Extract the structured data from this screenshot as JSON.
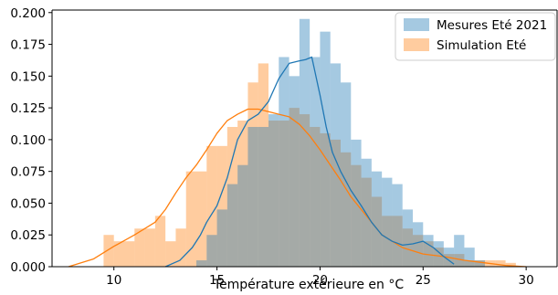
{
  "chart_data": {
    "type": "bar",
    "title": "",
    "xlabel": "Température extérieure en °C",
    "ylabel": "",
    "xlim": [
      7,
      31.5
    ],
    "ylim": [
      0,
      0.202
    ],
    "x_ticks": [
      10,
      15,
      20,
      25,
      30
    ],
    "y_ticks": [
      0.0,
      0.025,
      0.05,
      0.075,
      0.1,
      0.125,
      0.15,
      0.175,
      0.2
    ],
    "grid": false,
    "legend_position": "top-right",
    "series": [
      {
        "name": "Simulation Eté",
        "color": "#ff7f0e",
        "bin_start": 9.5,
        "bin_width": 0.5,
        "values": [
          0.025,
          0.02,
          0.02,
          0.03,
          0.03,
          0.04,
          0.02,
          0.03,
          0.075,
          0.075,
          0.095,
          0.095,
          0.11,
          0.115,
          0.145,
          0.16,
          0.115,
          0.115,
          0.125,
          0.12,
          0.11,
          0.105,
          0.1,
          0.09,
          0.08,
          0.07,
          0.055,
          0.04,
          0.04,
          0.03,
          0.025,
          0.02,
          0.015,
          0.01,
          0.01,
          0.005,
          0.005,
          0.005,
          0.005,
          0.003
        ]
      },
      {
        "name": "Mesures Eté 2021",
        "color": "#1f77b4",
        "bin_start": 14.0,
        "bin_width": 0.5,
        "values": [
          0.005,
          0.025,
          0.045,
          0.065,
          0.08,
          0.11,
          0.11,
          0.12,
          0.165,
          0.15,
          0.195,
          0.165,
          0.185,
          0.16,
          0.145,
          0.1,
          0.085,
          0.075,
          0.07,
          0.065,
          0.045,
          0.035,
          0.025,
          0.02,
          0.015,
          0.025,
          0.015,
          0.005
        ]
      }
    ],
    "kde": [
      {
        "series": "Simulation Eté",
        "color": "#ff7f0e",
        "x": [
          7.8,
          9,
          10,
          11,
          12,
          12.5,
          13,
          13.5,
          14,
          14.5,
          15,
          15.5,
          16,
          16.5,
          17,
          17.5,
          18,
          18.5,
          19,
          19.5,
          20,
          20.5,
          21,
          21.5,
          22,
          22.5,
          23,
          24,
          25,
          26,
          27,
          28,
          29,
          30
        ],
        "y": [
          0.0,
          0.006,
          0.016,
          0.025,
          0.035,
          0.045,
          0.058,
          0.07,
          0.08,
          0.092,
          0.105,
          0.115,
          0.12,
          0.124,
          0.124,
          0.122,
          0.12,
          0.118,
          0.112,
          0.103,
          0.092,
          0.08,
          0.068,
          0.055,
          0.045,
          0.035,
          0.025,
          0.015,
          0.01,
          0.008,
          0.005,
          0.003,
          0.001,
          0.0
        ]
      },
      {
        "series": "Mesures Eté 2021",
        "color": "#1f77b4",
        "x": [
          12.5,
          13.2,
          13.8,
          14.2,
          14.5,
          15,
          15.5,
          16,
          16.5,
          17,
          17.5,
          18,
          18.5,
          19,
          19.3,
          19.6,
          20,
          20.3,
          20.6,
          21,
          21.5,
          22,
          22.5,
          23,
          23.5,
          24,
          24.5,
          25,
          25.5,
          26,
          26.5
        ],
        "y": [
          0.0,
          0.005,
          0.015,
          0.025,
          0.035,
          0.048,
          0.07,
          0.1,
          0.115,
          0.12,
          0.13,
          0.148,
          0.16,
          0.162,
          0.163,
          0.165,
          0.135,
          0.11,
          0.09,
          0.075,
          0.06,
          0.048,
          0.035,
          0.025,
          0.02,
          0.017,
          0.018,
          0.02,
          0.015,
          0.008,
          0.002
        ]
      }
    ]
  }
}
